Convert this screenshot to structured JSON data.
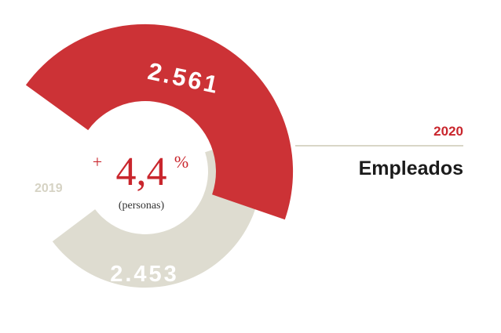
{
  "chart_data": {
    "type": "pie",
    "title": "Empleados",
    "series": [
      {
        "name": "2019",
        "value": 2453,
        "label": "2.453",
        "color": "#dedcd0"
      },
      {
        "name": "2020",
        "value": 2561,
        "label": "2.561",
        "color": "#cc3236"
      }
    ],
    "center": {
      "sign": "+",
      "value": "4,4",
      "unit": "%",
      "caption": "(personas)",
      "color": "#c9262d"
    }
  }
}
